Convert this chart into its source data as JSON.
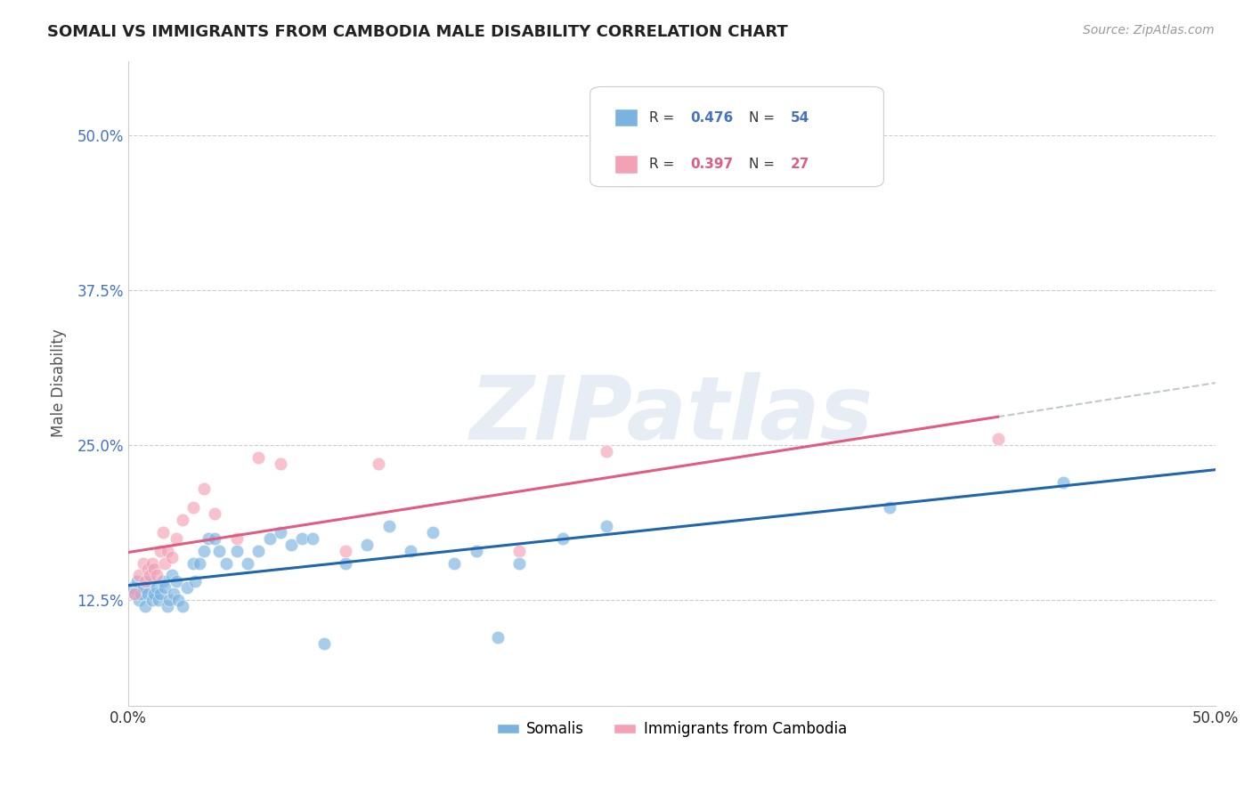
{
  "title": "SOMALI VS IMMIGRANTS FROM CAMBODIA MALE DISABILITY CORRELATION CHART",
  "source": "Source: ZipAtlas.com",
  "ylabel": "Male Disability",
  "xlim": [
    0.0,
    0.5
  ],
  "ylim": [
    0.04,
    0.56
  ],
  "yticks": [
    0.125,
    0.25,
    0.375,
    0.5
  ],
  "ytick_labels": [
    "12.5%",
    "25.0%",
    "37.5%",
    "50.0%"
  ],
  "xticks": [
    0.0,
    0.1,
    0.2,
    0.3,
    0.4,
    0.5
  ],
  "xtick_labels": [
    "0.0%",
    "",
    "",
    "",
    "",
    "50.0%"
  ],
  "grid_color": "#cccccc",
  "background_color": "#ffffff",
  "watermark": "ZIPatlas",
  "somali_color": "#7ab3e0",
  "cambodia_color": "#f4a0b5",
  "somali_line_color": "#2166ac",
  "cambodia_line_color": "#e05c80",
  "R_somali": 0.476,
  "N_somali": 54,
  "R_cambodia": 0.397,
  "N_cambodia": 27,
  "somali_x": [
    0.002,
    0.003,
    0.004,
    0.005,
    0.006,
    0.007,
    0.008,
    0.009,
    0.01,
    0.011,
    0.012,
    0.013,
    0.014,
    0.015,
    0.016,
    0.017,
    0.018,
    0.019,
    0.02,
    0.021,
    0.022,
    0.023,
    0.025,
    0.027,
    0.03,
    0.031,
    0.033,
    0.035,
    0.037,
    0.04,
    0.042,
    0.045,
    0.05,
    0.055,
    0.06,
    0.065,
    0.07,
    0.075,
    0.08,
    0.085,
    0.09,
    0.1,
    0.11,
    0.12,
    0.13,
    0.14,
    0.15,
    0.16,
    0.17,
    0.18,
    0.2,
    0.22,
    0.35,
    0.43
  ],
  "somali_y": [
    0.135,
    0.13,
    0.14,
    0.125,
    0.13,
    0.135,
    0.12,
    0.13,
    0.14,
    0.125,
    0.13,
    0.135,
    0.125,
    0.13,
    0.14,
    0.135,
    0.12,
    0.125,
    0.145,
    0.13,
    0.14,
    0.125,
    0.12,
    0.135,
    0.155,
    0.14,
    0.155,
    0.165,
    0.175,
    0.175,
    0.165,
    0.155,
    0.165,
    0.155,
    0.165,
    0.175,
    0.18,
    0.17,
    0.175,
    0.175,
    0.09,
    0.155,
    0.17,
    0.185,
    0.165,
    0.18,
    0.155,
    0.165,
    0.095,
    0.155,
    0.175,
    0.185,
    0.2,
    0.22
  ],
  "cambodia_x": [
    0.003,
    0.005,
    0.007,
    0.008,
    0.009,
    0.01,
    0.011,
    0.012,
    0.013,
    0.015,
    0.016,
    0.017,
    0.018,
    0.02,
    0.022,
    0.025,
    0.03,
    0.035,
    0.04,
    0.05,
    0.06,
    0.07,
    0.1,
    0.115,
    0.18,
    0.22,
    0.4
  ],
  "cambodia_y": [
    0.13,
    0.145,
    0.155,
    0.14,
    0.15,
    0.145,
    0.155,
    0.15,
    0.145,
    0.165,
    0.18,
    0.155,
    0.165,
    0.16,
    0.175,
    0.19,
    0.2,
    0.215,
    0.195,
    0.175,
    0.24,
    0.235,
    0.165,
    0.235,
    0.165,
    0.245,
    0.255
  ]
}
